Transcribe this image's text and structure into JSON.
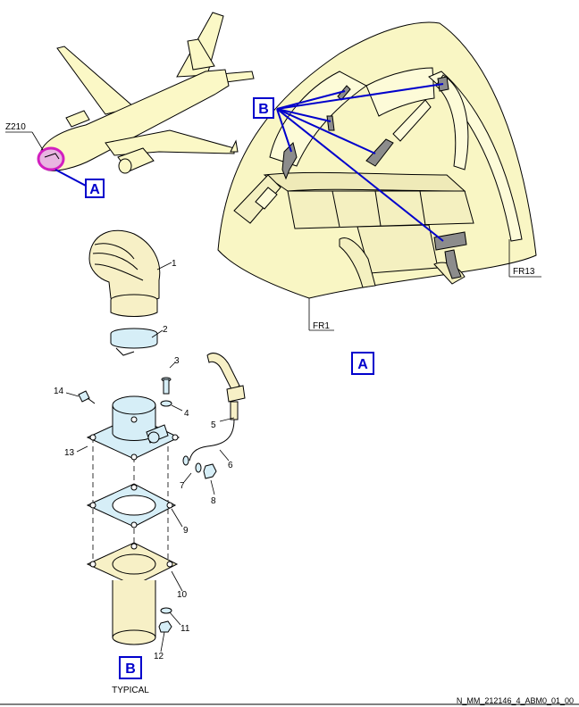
{
  "zone_label": "Z210",
  "view_labels": {
    "a_small": "A",
    "b_small": "B",
    "a_big": "A",
    "b_big": "B"
  },
  "frame_labels": {
    "fr1": "FR1",
    "fr13": "FR13"
  },
  "typical_label": "TYPICAL",
  "item_numbers": [
    "1",
    "2",
    "3",
    "4",
    "5",
    "6",
    "7",
    "8",
    "9",
    "10",
    "11",
    "12",
    "13",
    "14"
  ],
  "reference": "N_MM_212146_4_ABM0_01_00",
  "colors": {
    "highlight": "#d21fbf",
    "leader_blue": "#0000cc",
    "cockpit_fill": "#f9f6c4",
    "part_blue": "#d6eef7",
    "plate_tan": "#f7f0c6",
    "cable_gray": "#8c8c8c"
  }
}
